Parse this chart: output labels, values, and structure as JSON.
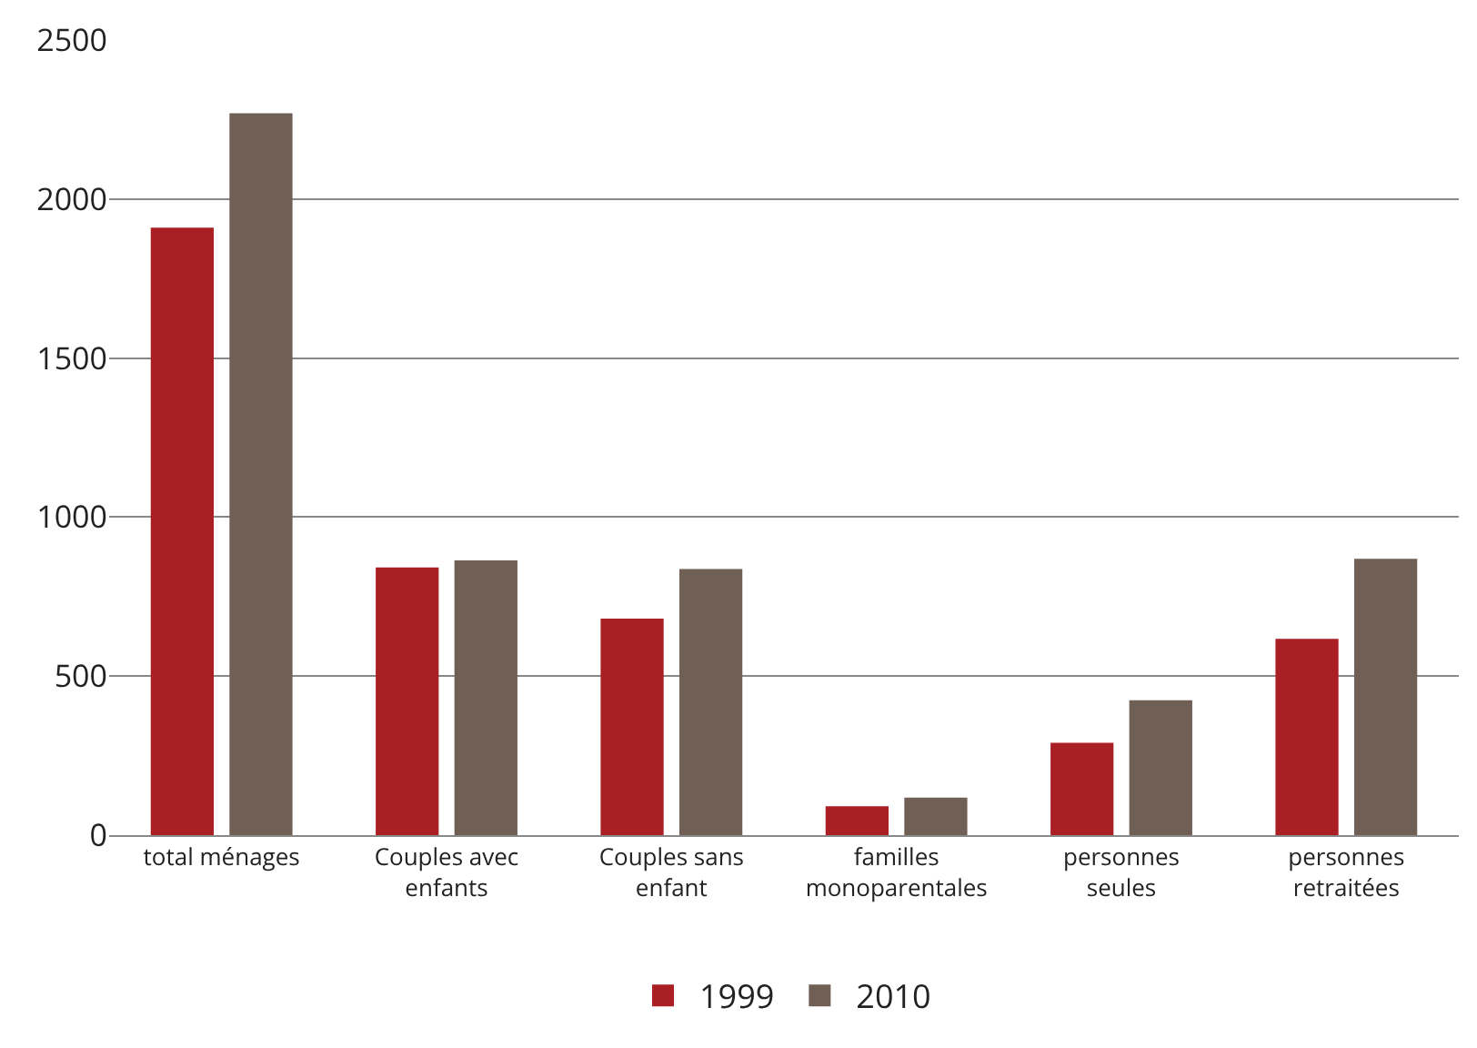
{
  "chart_data": {
    "type": "bar",
    "categories": [
      "total ménages",
      "Couples avec enfants",
      "Couples sans enfant",
      "familles monoparentales",
      "personnes seules",
      "personnes retraitées"
    ],
    "series": [
      {
        "name": "1999",
        "color": "#a91f24",
        "values": [
          1910,
          842,
          681,
          91,
          290,
          617
        ]
      },
      {
        "name": "2010",
        "color": "#6f5f55",
        "values": [
          2270,
          864,
          837,
          118,
          424,
          869
        ]
      }
    ],
    "ylim": [
      0,
      2500
    ],
    "yticks": [
      0,
      500,
      1000,
      1500,
      2000,
      2500
    ],
    "grid": "y",
    "legend": "bottom"
  }
}
